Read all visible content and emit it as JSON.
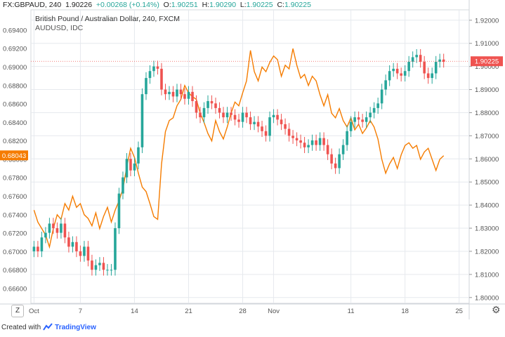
{
  "header": {
    "symbol": "FX:GBPAUD, 240",
    "last": "1.90226",
    "change": "+0.00268 (+0.14%)",
    "o_label": "O:",
    "o_value": "1.90251",
    "h_label": "H:",
    "h_value": "1.90290",
    "l_label": "L:",
    "l_value": "1.90225",
    "c_label": "C:",
    "c_value": "1.90225"
  },
  "legend": {
    "title": "British Pound / Australian Dollar, 240, FXCM",
    "overlay": "AUDUSD, IDC"
  },
  "footer": {
    "created_with": "Created with",
    "brand": "TradingView",
    "zoom_button": "Z"
  },
  "colors": {
    "up": "#26a69a",
    "down": "#ef5350",
    "overlay": "#f57c00",
    "price_tag": "#ef5350",
    "overlay_tag": "#f57c00",
    "grid": "#e6e9ee",
    "axis_text": "#555555"
  },
  "chart_data": {
    "type": "candlestick",
    "title": "British Pound / Australian Dollar, 240, FXCM",
    "x_ticks": [
      {
        "label": "Oct",
        "day": 1
      },
      {
        "label": "7",
        "day": 7
      },
      {
        "label": "14",
        "day": 14
      },
      {
        "label": "21",
        "day": 21
      },
      {
        "label": "28",
        "day": 28
      },
      {
        "label": "Nov",
        "day": 32
      },
      {
        "label": "11",
        "day": 42
      },
      {
        "label": "18",
        "day": 49
      },
      {
        "label": "25",
        "day": 56
      }
    ],
    "x_range": [
      0.6,
      57.3
    ],
    "right_axis": {
      "label": "GBPAUD",
      "range": [
        1.7975,
        1.9245
      ],
      "ticks": [
        "1.92000",
        "1.91000",
        "1.90000",
        "1.89000",
        "1.88000",
        "1.87000",
        "1.86000",
        "1.85000",
        "1.84000",
        "1.83000",
        "1.82000",
        "1.81000",
        "1.80000"
      ]
    },
    "left_axis": {
      "label": "AUDUSD",
      "range": [
        0.6644,
        0.6962
      ],
      "ticks": [
        "0.69400",
        "0.69200",
        "0.69000",
        "0.68800",
        "0.68600",
        "0.68400",
        "0.68200",
        "0.68000",
        "0.67800",
        "0.67600",
        "0.67400",
        "0.67200",
        "0.67000",
        "0.66800",
        "0.66600"
      ]
    },
    "current_price": {
      "label": "1.90225",
      "value": 1.90225
    },
    "overlay_current": {
      "label": "0.68043",
      "value": 0.68043
    },
    "gbpaud_close": [
      [
        1,
        1.822
      ],
      [
        1.5,
        1.82
      ],
      [
        2,
        1.826
      ],
      [
        2.5,
        1.828
      ],
      [
        3,
        1.832
      ],
      [
        3.5,
        1.83
      ],
      [
        4,
        1.828
      ],
      [
        4.5,
        1.832
      ],
      [
        5,
        1.826
      ],
      [
        5.5,
        1.822
      ],
      [
        6,
        1.824
      ],
      [
        6.5,
        1.82
      ],
      [
        7,
        1.818
      ],
      [
        7.5,
        1.822
      ],
      [
        8,
        1.816
      ],
      [
        8.5,
        1.812
      ],
      [
        9,
        1.814
      ],
      [
        9.5,
        1.815
      ],
      [
        10,
        1.812
      ],
      [
        10.5,
        1.812
      ],
      [
        11,
        1.812
      ],
      [
        11.5,
        1.83
      ],
      [
        12,
        1.845
      ],
      [
        12.5,
        1.852
      ],
      [
        13,
        1.86
      ],
      [
        13.5,
        1.855
      ],
      [
        14,
        1.858
      ],
      [
        14.5,
        1.865
      ],
      [
        15,
        1.888
      ],
      [
        15.5,
        1.895
      ],
      [
        16,
        1.898
      ],
      [
        16.5,
        1.9
      ],
      [
        17,
        1.899
      ],
      [
        17.5,
        1.89
      ],
      [
        18,
        1.888
      ],
      [
        18.5,
        1.889
      ],
      [
        19,
        1.887
      ],
      [
        19.5,
        1.89
      ],
      [
        20,
        1.888
      ],
      [
        20.5,
        1.886
      ],
      [
        21,
        1.889
      ],
      [
        21.5,
        1.885
      ],
      [
        22,
        1.88
      ],
      [
        22.5,
        1.878
      ],
      [
        23,
        1.882
      ],
      [
        23.5,
        1.885
      ],
      [
        24,
        1.884
      ],
      [
        24.5,
        1.882
      ],
      [
        25,
        1.88
      ],
      [
        25.5,
        1.878
      ],
      [
        26,
        1.88
      ],
      [
        26.5,
        1.879
      ],
      [
        27,
        1.877
      ],
      [
        27.5,
        1.876
      ],
      [
        28,
        1.88
      ],
      [
        28.5,
        1.878
      ],
      [
        29,
        1.875
      ],
      [
        29.5,
        1.876
      ],
      [
        30,
        1.874
      ],
      [
        30.5,
        1.872
      ],
      [
        31,
        1.87
      ],
      [
        31.5,
        1.878
      ],
      [
        32,
        1.879
      ],
      [
        32.5,
        1.877
      ],
      [
        33,
        1.875
      ],
      [
        33.5,
        1.873
      ],
      [
        34,
        1.87
      ],
      [
        34.5,
        1.869
      ],
      [
        35,
        1.868
      ],
      [
        35.5,
        1.867
      ],
      [
        36,
        1.865
      ],
      [
        36.5,
        1.866
      ],
      [
        37,
        1.868
      ],
      [
        37.5,
        1.866
      ],
      [
        38,
        1.869
      ],
      [
        38.5,
        1.866
      ],
      [
        39,
        1.862
      ],
      [
        39.5,
        1.858
      ],
      [
        40,
        1.856
      ],
      [
        40.5,
        1.862
      ],
      [
        41,
        1.866
      ],
      [
        41.5,
        1.872
      ],
      [
        42,
        1.876
      ],
      [
        42.5,
        1.878
      ],
      [
        43,
        1.877
      ],
      [
        43.5,
        1.876
      ],
      [
        44,
        1.878
      ],
      [
        44.5,
        1.88
      ],
      [
        45,
        1.882
      ],
      [
        45.5,
        1.884
      ],
      [
        46,
        1.89
      ],
      [
        46.5,
        1.894
      ],
      [
        47,
        1.898
      ],
      [
        47.5,
        1.899
      ],
      [
        48,
        1.897
      ],
      [
        48.5,
        1.896
      ],
      [
        49,
        1.898
      ],
      [
        49.5,
        1.902
      ],
      [
        50,
        1.904
      ],
      [
        50.5,
        1.905
      ],
      [
        51,
        1.902
      ],
      [
        51.5,
        1.897
      ],
      [
        52,
        1.895
      ],
      [
        52.5,
        1.897
      ],
      [
        53,
        1.902
      ],
      [
        53.5,
        1.903
      ],
      [
        54,
        1.902
      ]
    ],
    "audusd": [
      [
        1,
        0.6745
      ],
      [
        1.5,
        0.6732
      ],
      [
        2,
        0.6725
      ],
      [
        2.5,
        0.6718
      ],
      [
        3,
        0.6705
      ],
      [
        3.5,
        0.6725
      ],
      [
        4,
        0.674
      ],
      [
        4.5,
        0.6735
      ],
      [
        5,
        0.6752
      ],
      [
        5.5,
        0.6745
      ],
      [
        6,
        0.676
      ],
      [
        6.5,
        0.6748
      ],
      [
        7,
        0.6752
      ],
      [
        7.5,
        0.674
      ],
      [
        8,
        0.6736
      ],
      [
        8.5,
        0.6728
      ],
      [
        9,
        0.6742
      ],
      [
        9.5,
        0.6725
      ],
      [
        10,
        0.6738
      ],
      [
        10.5,
        0.6748
      ],
      [
        11,
        0.6732
      ],
      [
        11.5,
        0.6745
      ],
      [
        12,
        0.6755
      ],
      [
        12.5,
        0.6768
      ],
      [
        13,
        0.6792
      ],
      [
        13.5,
        0.6812
      ],
      [
        14,
        0.6802
      ],
      [
        14.5,
        0.6785
      ],
      [
        15,
        0.677
      ],
      [
        15.5,
        0.6765
      ],
      [
        16,
        0.6752
      ],
      [
        16.5,
        0.6738
      ],
      [
        17,
        0.6735
      ],
      [
        17.5,
        0.6795
      ],
      [
        18,
        0.683
      ],
      [
        18.5,
        0.6842
      ],
      [
        19,
        0.6845
      ],
      [
        19.5,
        0.6858
      ],
      [
        20,
        0.6865
      ],
      [
        20.5,
        0.688
      ],
      [
        21,
        0.6872
      ],
      [
        21.5,
        0.6868
      ],
      [
        22,
        0.6865
      ],
      [
        22.5,
        0.685
      ],
      [
        23,
        0.684
      ],
      [
        23.5,
        0.6828
      ],
      [
        24,
        0.682
      ],
      [
        24.5,
        0.6842
      ],
      [
        25,
        0.683
      ],
      [
        25.5,
        0.6822
      ],
      [
        26,
        0.6835
      ],
      [
        26.5,
        0.685
      ],
      [
        27,
        0.6862
      ],
      [
        27.5,
        0.6858
      ],
      [
        28,
        0.6872
      ],
      [
        28.5,
        0.6885
      ],
      [
        29,
        0.6918
      ],
      [
        29.5,
        0.6895
      ],
      [
        30,
        0.6885
      ],
      [
        30.5,
        0.69
      ],
      [
        31,
        0.6895
      ],
      [
        31.5,
        0.6905
      ],
      [
        32,
        0.6912
      ],
      [
        32.5,
        0.6908
      ],
      [
        33,
        0.689
      ],
      [
        33.5,
        0.6902
      ],
      [
        34,
        0.6898
      ],
      [
        34.5,
        0.692
      ],
      [
        35,
        0.6902
      ],
      [
        35.5,
        0.6888
      ],
      [
        36,
        0.6892
      ],
      [
        36.5,
        0.688
      ],
      [
        37,
        0.689
      ],
      [
        37.5,
        0.6885
      ],
      [
        38,
        0.687
      ],
      [
        38.5,
        0.6858
      ],
      [
        39,
        0.687
      ],
      [
        39.5,
        0.685
      ],
      [
        40,
        0.6845
      ],
      [
        40.5,
        0.6855
      ],
      [
        41,
        0.6842
      ],
      [
        41.5,
        0.6835
      ],
      [
        42,
        0.6845
      ],
      [
        42.5,
        0.6832
      ],
      [
        43,
        0.6838
      ],
      [
        43.5,
        0.6828
      ],
      [
        44,
        0.6834
      ],
      [
        44.5,
        0.6842
      ],
      [
        45,
        0.6835
      ],
      [
        45.5,
        0.6822
      ],
      [
        46,
        0.68
      ],
      [
        46.5,
        0.6785
      ],
      [
        47,
        0.6795
      ],
      [
        47.5,
        0.6802
      ],
      [
        48,
        0.679
      ],
      [
        48.5,
        0.6805
      ],
      [
        49,
        0.6815
      ],
      [
        49.5,
        0.6818
      ],
      [
        50,
        0.6812
      ],
      [
        50.5,
        0.6815
      ],
      [
        51,
        0.68
      ],
      [
        51.5,
        0.6808
      ],
      [
        52,
        0.6812
      ],
      [
        52.5,
        0.68
      ],
      [
        53,
        0.6788
      ],
      [
        53.5,
        0.68
      ],
      [
        54,
        0.6804
      ]
    ]
  }
}
